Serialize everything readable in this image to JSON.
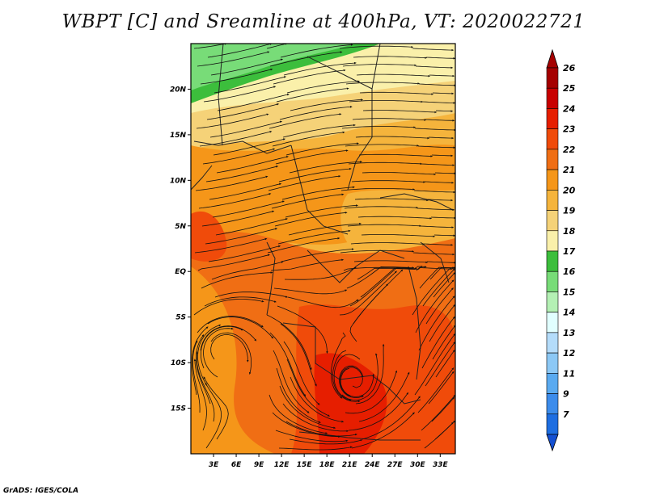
{
  "title": "WBPT [C] and Sreamline at 400hPa, VT: 2020022721",
  "credit": "GrADS: IGES/COLA",
  "map": {
    "lon_range": [
      0,
      35
    ],
    "lat_range": [
      -20,
      25
    ],
    "lon_ticks": [
      {
        "value": 3,
        "label": "3E"
      },
      {
        "value": 6,
        "label": "6E"
      },
      {
        "value": 9,
        "label": "9E"
      },
      {
        "value": 12,
        "label": "12E"
      },
      {
        "value": 15,
        "label": "15E"
      },
      {
        "value": 18,
        "label": "18E"
      },
      {
        "value": 21,
        "label": "21E"
      },
      {
        "value": 24,
        "label": "24E"
      },
      {
        "value": 27,
        "label": "27E"
      },
      {
        "value": 30,
        "label": "30E"
      },
      {
        "value": 33,
        "label": "33E"
      }
    ],
    "lat_ticks": [
      {
        "value": 20,
        "label": "20N"
      },
      {
        "value": 15,
        "label": "15N"
      },
      {
        "value": 10,
        "label": "10N"
      },
      {
        "value": 5,
        "label": "5N"
      },
      {
        "value": 0,
        "label": "EQ"
      },
      {
        "value": -5,
        "label": "5S"
      },
      {
        "value": -10,
        "label": "10S"
      },
      {
        "value": -15,
        "label": "15S"
      }
    ],
    "variable": "WBPT",
    "units": "C",
    "level": "400hPa"
  },
  "colorbar": {
    "levels": [
      {
        "label": "26",
        "color": "#a50000"
      },
      {
        "label": "25",
        "color": "#c80000"
      },
      {
        "label": "24",
        "color": "#e61e00"
      },
      {
        "label": "23",
        "color": "#f04b0a"
      },
      {
        "label": "22",
        "color": "#f06e14"
      },
      {
        "label": "21",
        "color": "#f59619"
      },
      {
        "label": "20",
        "color": "#f5b43c"
      },
      {
        "label": "19",
        "color": "#f5d278"
      },
      {
        "label": "18",
        "color": "#faf0aa"
      },
      {
        "label": "17",
        "color": "#3cbe3c"
      },
      {
        "label": "16",
        "color": "#78dc78"
      },
      {
        "label": "15",
        "color": "#b4f0b4"
      },
      {
        "label": "14",
        "color": "#e1ffff"
      },
      {
        "label": "13",
        "color": "#b4dcfa"
      },
      {
        "label": "12",
        "color": "#8cc8f5"
      },
      {
        "label": "11",
        "color": "#5aaaf0"
      },
      {
        "label": "9",
        "color": "#3c8ceb"
      },
      {
        "label": "7",
        "color": "#1e6ee1"
      }
    ],
    "bottom_color": "#1450d2"
  }
}
